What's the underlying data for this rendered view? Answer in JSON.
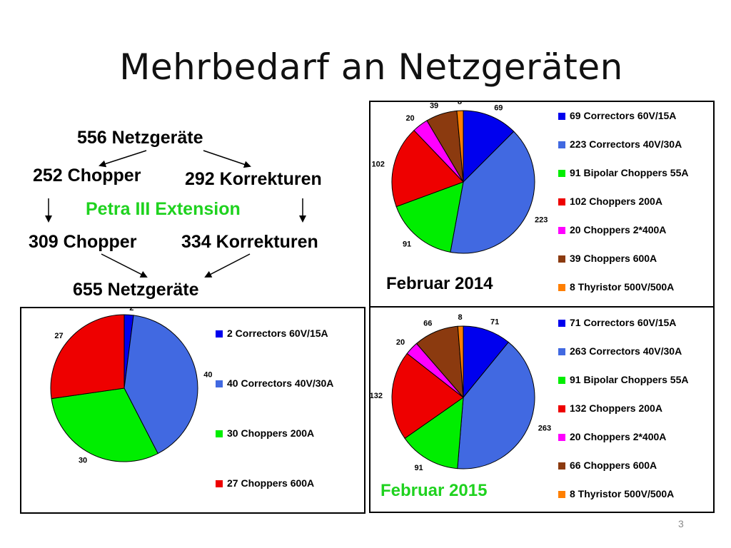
{
  "slide": {
    "title": "Mehrbedarf an Netzgeräten",
    "page_number": "3"
  },
  "flow": {
    "total_before": "556 Netzgeräte",
    "chopper_before": "252 Chopper",
    "korrekturen_before": "292 Korrekturen",
    "extension": "Petra III Extension",
    "chopper_after": "309 Chopper",
    "korrekturen_after": "334 Korrekturen",
    "total_after": "655 Netzgeräte",
    "extension_color": "#1fd21f"
  },
  "chart_data": [
    {
      "type": "pie",
      "caption": "",
      "slices": [
        {
          "label": "2 Correctors 60V/15A",
          "value": 2,
          "color": "#0000ee"
        },
        {
          "label": "40 Correctors 40V/30A",
          "value": 40,
          "color": "#4169e1"
        },
        {
          "label": "30 Choppers 200A",
          "value": 30,
          "color": "#00ee00"
        },
        {
          "label": "27 Choppers 600A",
          "value": 27,
          "color": "#ee0000"
        }
      ]
    },
    {
      "type": "pie",
      "caption": "Februar 2014",
      "slices": [
        {
          "label": "69 Correctors 60V/15A",
          "value": 69,
          "color": "#0000ee"
        },
        {
          "label": "223 Correctors 40V/30A",
          "value": 223,
          "color": "#4169e1"
        },
        {
          "label": "91 Bipolar Choppers 55A",
          "value": 91,
          "color": "#00ee00"
        },
        {
          "label": "102 Choppers 200A",
          "value": 102,
          "color": "#ee0000"
        },
        {
          "label": "20 Choppers 2*400A",
          "value": 20,
          "color": "#ff00ff"
        },
        {
          "label": "39 Choppers 600A",
          "value": 39,
          "color": "#8b3a0f"
        },
        {
          "label": "8 Thyristor 500V/500A",
          "value": 8,
          "color": "#ff7f00"
        }
      ]
    },
    {
      "type": "pie",
      "caption": "Februar 2015",
      "caption_color": "#1fd21f",
      "slices": [
        {
          "label": "71 Correctors 60V/15A",
          "value": 71,
          "color": "#0000ee"
        },
        {
          "label": "263 Correctors 40V/30A",
          "value": 263,
          "color": "#4169e1"
        },
        {
          "label": "91 Bipolar Choppers 55A",
          "value": 91,
          "color": "#00ee00"
        },
        {
          "label": "132 Choppers 200A",
          "value": 132,
          "color": "#ee0000"
        },
        {
          "label": "20 Choppers 2*400A",
          "value": 20,
          "color": "#ff00ff"
        },
        {
          "label": "66 Choppers 600A",
          "value": 66,
          "color": "#8b3a0f"
        },
        {
          "label": "8 Thyristor 500V/500A",
          "value": 8,
          "color": "#ff7f00"
        }
      ]
    }
  ]
}
